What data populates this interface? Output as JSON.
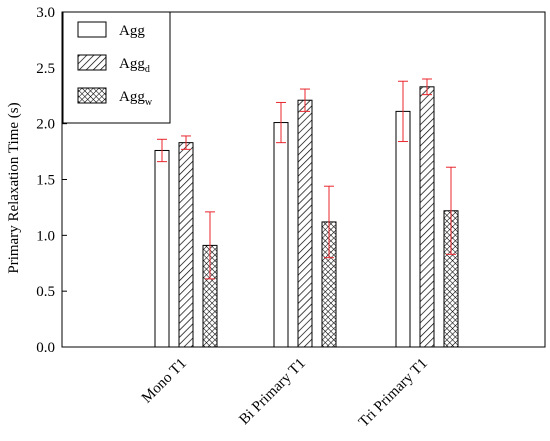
{
  "chart_data": {
    "type": "bar",
    "title": "",
    "xlabel": "",
    "ylabel": "Primary Relaxation Time (s)",
    "ylim": [
      0,
      3.0
    ],
    "yticks": [
      "0.0",
      "0.5",
      "1.0",
      "1.5",
      "2.0",
      "2.5",
      "3.0"
    ],
    "categories": [
      "Mono T1",
      "Bi Primary T1",
      "Tri Primary T1"
    ],
    "series": [
      {
        "name": "Agg",
        "name_base": "Agg",
        "name_sub": "",
        "pattern": "none",
        "values": [
          1.76,
          2.01,
          2.11
        ],
        "errors": [
          0.1,
          0.18,
          0.27
        ]
      },
      {
        "name": "Agg_d",
        "name_base": "Agg",
        "name_sub": "d",
        "pattern": "diagonal-hatch",
        "values": [
          1.83,
          2.21,
          2.33
        ],
        "errors": [
          0.06,
          0.1,
          0.07
        ]
      },
      {
        "name": "Agg_w",
        "name_base": "Agg",
        "name_sub": "w",
        "pattern": "crosshatch",
        "values": [
          0.91,
          1.12,
          1.22
        ],
        "errors": [
          0.3,
          0.32,
          0.39
        ]
      }
    ],
    "legend_position": "top-left",
    "grid": false,
    "colors": {
      "bar_edge": "#000000",
      "bar_fill": "#ffffff",
      "error_bar": "#e8262d"
    }
  }
}
